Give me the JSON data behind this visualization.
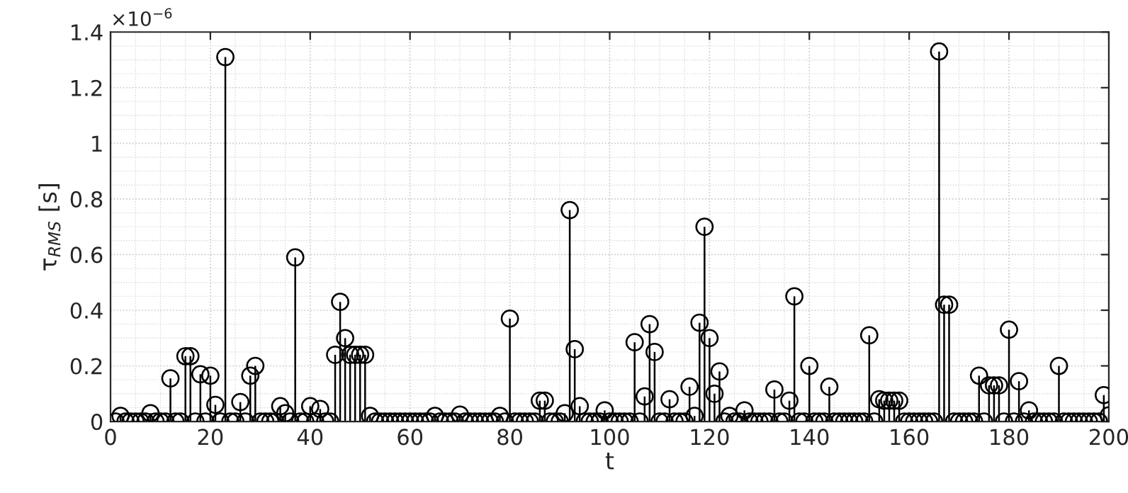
{
  "chart_data": {
    "type": "lollipop",
    "xlabel": "t",
    "ylabel": "τ$_{RMS}$ [s]",
    "annotations": [
      "×10$^{−6}$"
    ],
    "x": [
      1,
      2,
      3,
      4,
      5,
      6,
      7,
      8,
      9,
      10,
      11,
      12,
      13,
      14,
      15,
      16,
      17,
      18,
      19,
      20,
      21,
      22,
      23,
      24,
      25,
      26,
      27,
      28,
      29,
      30,
      31,
      32,
      33,
      34,
      35,
      36,
      37,
      38,
      39,
      40,
      41,
      42,
      43,
      44,
      45,
      46,
      47,
      48,
      49,
      50,
      51,
      52,
      53,
      54,
      55,
      56,
      57,
      58,
      59,
      60,
      61,
      62,
      63,
      64,
      65,
      66,
      67,
      68,
      69,
      70,
      71,
      72,
      73,
      74,
      75,
      76,
      77,
      78,
      79,
      80,
      81,
      82,
      83,
      84,
      85,
      86,
      87,
      88,
      89,
      90,
      91,
      92,
      93,
      94,
      95,
      96,
      97,
      98,
      99,
      100,
      101,
      102,
      103,
      104,
      105,
      106,
      107,
      108,
      109,
      110,
      111,
      112,
      113,
      114,
      115,
      116,
      117,
      118,
      119,
      120,
      121,
      122,
      123,
      124,
      125,
      126,
      127,
      128,
      129,
      130,
      131,
      132,
      133,
      134,
      135,
      136,
      137,
      138,
      139,
      140,
      141,
      142,
      143,
      144,
      145,
      146,
      147,
      148,
      149,
      150,
      151,
      152,
      153,
      154,
      155,
      156,
      157,
      158,
      159,
      160,
      161,
      162,
      163,
      164,
      165,
      166,
      167,
      168,
      169,
      170,
      171,
      172,
      173,
      174,
      175,
      176,
      177,
      178,
      179,
      180,
      181,
      182,
      183,
      184,
      185,
      186,
      187,
      188,
      189,
      190,
      191,
      192,
      193,
      194,
      195,
      196,
      197,
      198,
      199,
      200
    ],
    "values": [
      0,
      0.02,
      0,
      0,
      0,
      0,
      0,
      0.03,
      0,
      0,
      0,
      0.155,
      0,
      0,
      0.235,
      0.235,
      0,
      0.17,
      0,
      0.165,
      0.06,
      0,
      1.31,
      0,
      0,
      0.07,
      0,
      0.165,
      0.2,
      0,
      0,
      0,
      0,
      0.055,
      0.03,
      0,
      0.59,
      0,
      0,
      0.055,
      0,
      0.045,
      0,
      0,
      0.24,
      0.43,
      0.3,
      0.24,
      0.24,
      0.24,
      0.24,
      0.02,
      0,
      0,
      0,
      0,
      0,
      0,
      0,
      0,
      0,
      0,
      0,
      0,
      0.02,
      0,
      0,
      0,
      0,
      0.025,
      0,
      0,
      0,
      0,
      0,
      0,
      0,
      0.02,
      0,
      0.37,
      0,
      0,
      0,
      0,
      0,
      0.075,
      0.075,
      0,
      0,
      0,
      0.03,
      0.76,
      0.26,
      0.055,
      0,
      0,
      0,
      0,
      0.04,
      0,
      0,
      0,
      0,
      0,
      0.285,
      0,
      0.09,
      0.35,
      0.25,
      0,
      0,
      0.08,
      0,
      0,
      0,
      0.125,
      0.02,
      0.355,
      0.7,
      0.3,
      0.1,
      0.18,
      0,
      0.02,
      0,
      0,
      0.04,
      0,
      0,
      0,
      0,
      0,
      0.115,
      0,
      0,
      0.075,
      0.45,
      0,
      0,
      0.2,
      0,
      0,
      0,
      0.125,
      0,
      0,
      0,
      0,
      0,
      0,
      0,
      0.31,
      0,
      0.08,
      0.075,
      0.075,
      0.075,
      0.075,
      0,
      0,
      0,
      0,
      0,
      0,
      0,
      1.33,
      0.42,
      0.42,
      0,
      0,
      0,
      0,
      0,
      0.165,
      0,
      0.13,
      0.13,
      0.13,
      0,
      0.33,
      0,
      0.145,
      0,
      0.04,
      0,
      0,
      0,
      0,
      0,
      0.2,
      0,
      0,
      0,
      0,
      0,
      0,
      0,
      0,
      0.095,
      0.022
    ],
    "color": "#000000",
    "marker": "circle",
    "grid": true,
    "xlim": [
      0,
      200
    ],
    "xticks": [
      0,
      20,
      40,
      60,
      80,
      100,
      120,
      140,
      160,
      180,
      200
    ],
    "ylim": [
      0,
      1.4
    ],
    "yticks": [
      0,
      0.2,
      0.4,
      0.6,
      0.8,
      1,
      1.2,
      1.4
    ]
  }
}
